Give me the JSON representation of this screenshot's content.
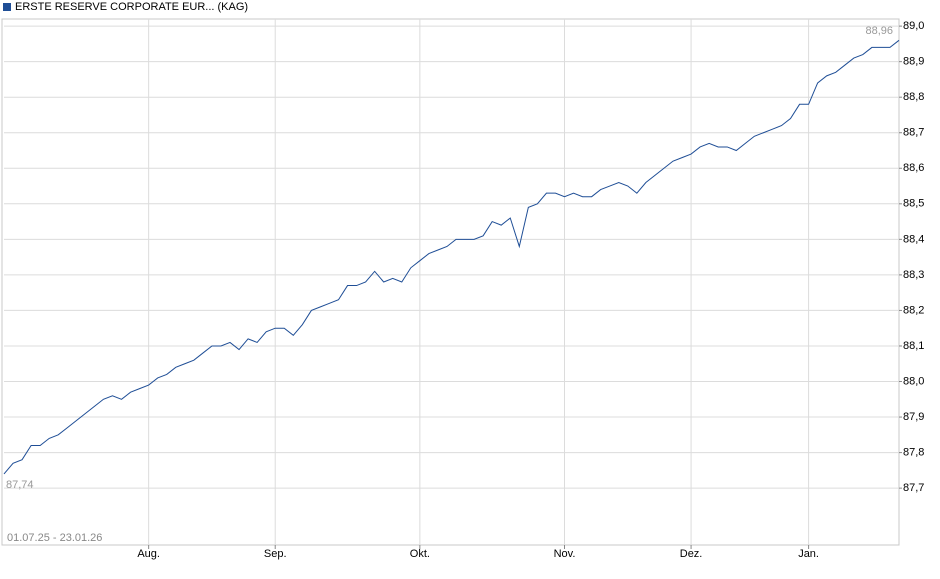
{
  "chart_data": {
    "type": "line",
    "date_range": "01.07.25 - 23.01.26",
    "categories": [
      null,
      null,
      null,
      null,
      null,
      null,
      null,
      null,
      null,
      null,
      null,
      null,
      null,
      null,
      null,
      null,
      "Aug.",
      null,
      null,
      null,
      null,
      null,
      null,
      null,
      null,
      null,
      null,
      null,
      null,
      null,
      "Sep.",
      null,
      null,
      null,
      null,
      null,
      null,
      null,
      null,
      null,
      null,
      null,
      null,
      null,
      null,
      null,
      "Okt.",
      null,
      null,
      null,
      null,
      null,
      null,
      null,
      null,
      null,
      null,
      null,
      null,
      null,
      null,
      null,
      "Nov.",
      null,
      null,
      null,
      null,
      null,
      null,
      null,
      null,
      null,
      null,
      null,
      null,
      null,
      "Dez.",
      null,
      null,
      null,
      null,
      null,
      null,
      null,
      null,
      null,
      null,
      null,
      null,
      "Jan.",
      null,
      null,
      null,
      null,
      null,
      null,
      null,
      null,
      null,
      null
    ],
    "series": [
      {
        "name": "ERSTE RESERVE CORPORATE EUR... (KAG)",
        "color": "#1f4e96",
        "values": [
          87.74,
          87.77,
          87.78,
          87.82,
          87.82,
          87.84,
          87.85,
          87.87,
          87.89,
          87.91,
          87.93,
          87.95,
          87.96,
          87.95,
          87.97,
          87.98,
          87.99,
          88.01,
          88.02,
          88.04,
          88.05,
          88.06,
          88.08,
          88.1,
          88.1,
          88.11,
          88.09,
          88.12,
          88.11,
          88.14,
          88.15,
          88.15,
          88.13,
          88.16,
          88.2,
          88.21,
          88.22,
          88.23,
          88.27,
          88.27,
          88.28,
          88.31,
          88.28,
          88.29,
          88.28,
          88.32,
          88.34,
          88.36,
          88.37,
          88.38,
          88.4,
          88.4,
          88.4,
          88.41,
          88.45,
          88.44,
          88.46,
          88.38,
          88.49,
          88.5,
          88.53,
          88.53,
          88.52,
          88.53,
          88.52,
          88.52,
          88.54,
          88.55,
          88.56,
          88.55,
          88.53,
          88.56,
          88.58,
          88.6,
          88.62,
          88.63,
          88.64,
          88.66,
          88.67,
          88.66,
          88.66,
          88.65,
          88.67,
          88.69,
          88.7,
          88.71,
          88.72,
          88.74,
          88.78,
          88.78,
          88.84,
          88.86,
          88.87,
          88.89,
          88.91,
          88.92,
          88.94,
          88.94,
          88.94,
          88.96
        ],
        "value_labels": [
          "87,74",
          null,
          null,
          null,
          null,
          null,
          null,
          null,
          null,
          null,
          null,
          null,
          null,
          null,
          null,
          null,
          null,
          null,
          null,
          null,
          null,
          null,
          null,
          null,
          null,
          null,
          null,
          null,
          null,
          null,
          null,
          null,
          null,
          null,
          null,
          null,
          null,
          null,
          null,
          null,
          null,
          null,
          null,
          null,
          null,
          null,
          null,
          null,
          null,
          null,
          null,
          null,
          null,
          null,
          null,
          null,
          null,
          null,
          null,
          null,
          null,
          null,
          null,
          null,
          null,
          null,
          null,
          null,
          null,
          null,
          null,
          null,
          null,
          null,
          null,
          null,
          null,
          null,
          null,
          null,
          null,
          null,
          null,
          null,
          null,
          null,
          null,
          null,
          null,
          null,
          null,
          null,
          null,
          null,
          null,
          null,
          null,
          null,
          null,
          "88,96"
        ]
      }
    ],
    "ylim": [
      87.54,
      89.02
    ],
    "yticks": [
      {
        "value": 87.7,
        "label": "87,7"
      },
      {
        "value": 87.8,
        "label": "87,8"
      },
      {
        "value": 87.9,
        "label": "87,9"
      },
      {
        "value": 88.0,
        "label": "88,0"
      },
      {
        "value": 88.1,
        "label": "88,1"
      },
      {
        "value": 88.2,
        "label": "88,2"
      },
      {
        "value": 88.3,
        "label": "88,3"
      },
      {
        "value": 88.4,
        "label": "88,4"
      },
      {
        "value": 88.5,
        "label": "88,5"
      },
      {
        "value": 88.6,
        "label": "88,6"
      },
      {
        "value": 88.7,
        "label": "88,7"
      },
      {
        "value": 88.8,
        "label": "88,8"
      },
      {
        "value": 88.9,
        "label": "88,9"
      },
      {
        "value": 89.0,
        "label": "89,0"
      }
    ],
    "grid": true
  }
}
